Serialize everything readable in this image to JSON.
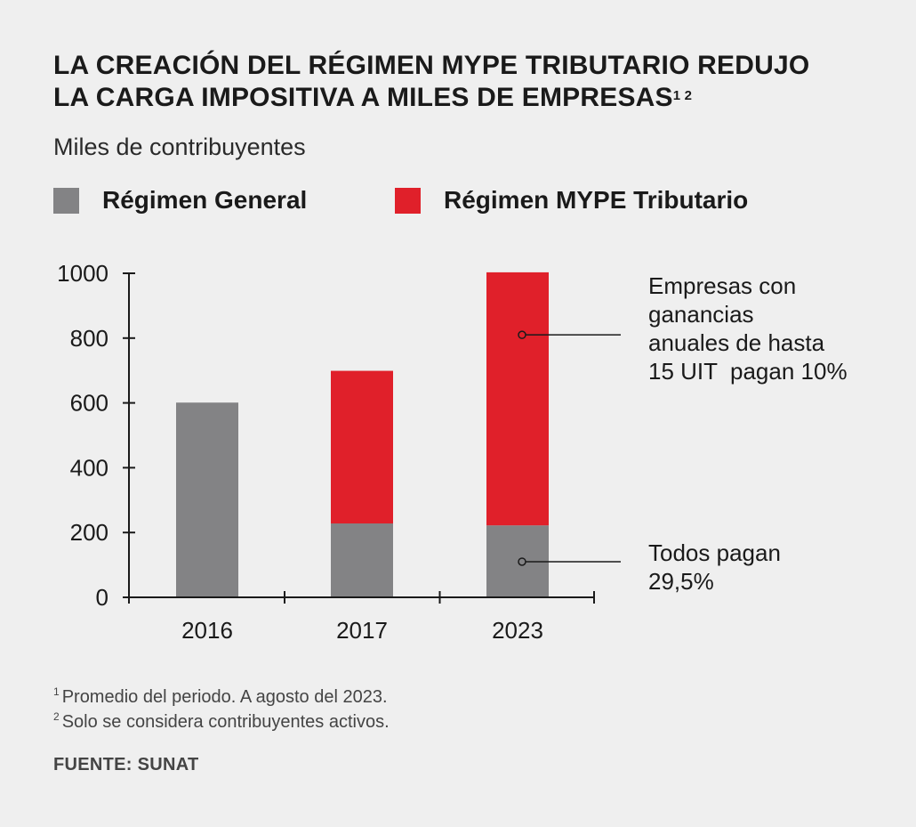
{
  "header": {
    "title_line1": "LA CREACIÓN DEL RÉGIMEN MYPE TRIBUTARIO REDUJO",
    "title_line2": "LA CARGA IMPOSITIVA A MILES DE EMPRESAS",
    "title_sup": "1 2",
    "subtitle": "Miles de contribuyentes"
  },
  "legend": {
    "items": [
      {
        "label": "Régimen General",
        "color": "#838385"
      },
      {
        "label": "Régimen MYPE Tributario",
        "color": "#e0202a"
      }
    ]
  },
  "chart_data": {
    "type": "bar",
    "stacked": true,
    "categories": [
      "2016",
      "2017",
      "2023"
    ],
    "series": [
      {
        "name": "Régimen General",
        "color": "#838385",
        "values": [
          601,
          228,
          222
        ]
      },
      {
        "name": "Régimen MYPE Tributario",
        "color": "#e0202a",
        "values": [
          0,
          471,
          781
        ]
      }
    ],
    "y_ticks": [
      0,
      200,
      400,
      600,
      800,
      1000
    ],
    "ylim": [
      0,
      1000
    ],
    "grid": false,
    "annotations": [
      {
        "lines": [
          "Empresas con",
          "ganancias",
          "anuales de hasta",
          "15 UIT  pagan 10%"
        ],
        "category": "2023",
        "value": 810
      },
      {
        "lines": [
          "Todos pagan",
          "29,5%"
        ],
        "category": "2023",
        "value": 110
      }
    ]
  },
  "footnotes": {
    "n1_mark": "1",
    "n1_text": "Promedio del periodo. A agosto del 2023.",
    "n2_mark": "2",
    "n2_text": "Solo se considera contribuyentes activos."
  },
  "source": "FUENTE: SUNAT"
}
